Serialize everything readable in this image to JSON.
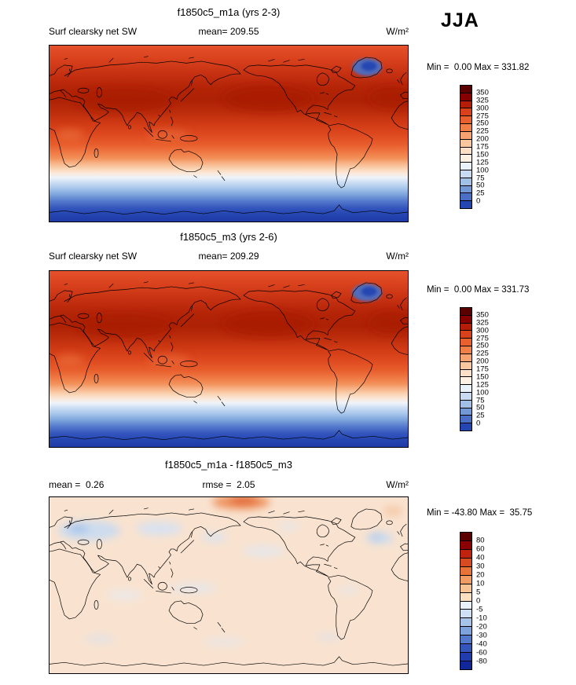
{
  "season": "JJA",
  "panels": [
    {
      "title": "f1850c5_m1a (yrs 2-3)",
      "left_label": "Surf clearsky net SW",
      "center_label": "mean= 209.55",
      "units": "W/m²",
      "minmax": "Min =  0.00 Max = 331.82",
      "colorbar": {
        "labels": [
          "350",
          "325",
          "300",
          "275",
          "250",
          "225",
          "200",
          "175",
          "150",
          "125",
          "100",
          "75",
          "50",
          "25",
          "0"
        ],
        "colors": [
          "#5a0000",
          "#870000",
          "#b51d09",
          "#d8411c",
          "#e8602e",
          "#f08048",
          "#f6a371",
          "#fac79e",
          "#fcdfc6",
          "#fdf1e4",
          "#e9f1fa",
          "#c9dbf2",
          "#a0c0e6",
          "#7299d6",
          "#4a6fc4",
          "#2546b2"
        ]
      }
    },
    {
      "title": "f1850c5_m3 (yrs 2-6)",
      "left_label": "Surf clearsky net SW",
      "center_label": "mean= 209.29",
      "units": "W/m²",
      "minmax": "Min =  0.00 Max = 331.73",
      "colorbar": {
        "labels": [
          "350",
          "325",
          "300",
          "275",
          "250",
          "225",
          "200",
          "175",
          "150",
          "125",
          "100",
          "75",
          "50",
          "25",
          "0"
        ],
        "colors": [
          "#5a0000",
          "#870000",
          "#b51d09",
          "#d8411c",
          "#e8602e",
          "#f08048",
          "#f6a371",
          "#fac79e",
          "#fcdfc6",
          "#fdf1e4",
          "#e9f1fa",
          "#c9dbf2",
          "#a0c0e6",
          "#7299d6",
          "#4a6fc4",
          "#2546b2"
        ]
      }
    },
    {
      "title": "f1850c5_m1a - f1850c5_m3",
      "left_label": "mean =  0.26",
      "center_label": "rmse =  2.05",
      "units": "W/m²",
      "minmax": "Min = -43.80 Max =  35.75",
      "colorbar": {
        "labels": [
          "80",
          "60",
          "40",
          "30",
          "20",
          "10",
          "5",
          "0",
          "-5",
          "-10",
          "-20",
          "-30",
          "-40",
          "-60",
          "-80"
        ],
        "colors": [
          "#5a0000",
          "#8b0000",
          "#bf2310",
          "#d84a22",
          "#e87338",
          "#f29b62",
          "#f8c392",
          "#fce0c2",
          "#e9f1fb",
          "#cfdff4",
          "#a6c4ea",
          "#7da2dc",
          "#5379cc",
          "#3355bc",
          "#1f3dac",
          "#10289a"
        ]
      }
    }
  ],
  "chart_data": [
    {
      "type": "heatmap",
      "subtype": "global-filled-contour-map",
      "title": "f1850c5_m1a (yrs 2-3)",
      "variable": "Surf clearsky net SW",
      "season": "JJA",
      "units": "W/m2",
      "mean": 209.55,
      "min": 0.0,
      "max": 331.82,
      "contour_levels": [
        0,
        25,
        50,
        75,
        100,
        125,
        150,
        175,
        200,
        225,
        250,
        275,
        300,
        325,
        350
      ],
      "palette": "blue-white-red",
      "legend_position": "right",
      "projection": "cylindrical equidistant, 0-360E, 90N-90S",
      "zonal_mean_estimate": {
        "lat": [
          90,
          70,
          50,
          35,
          20,
          0,
          -20,
          -35,
          -50,
          -65,
          -80,
          -90
        ],
        "value": [
          265,
          290,
          310,
          320,
          300,
          285,
          240,
          170,
          100,
          40,
          5,
          0
        ]
      },
      "notable_features": "dark-red maximum (>325) over subtropical N Pacific, N Atlantic and S Asia; low values (blue, <50) over Greenland and Antarctica / southern polar night"
    },
    {
      "type": "heatmap",
      "subtype": "global-filled-contour-map",
      "title": "f1850c5_m3 (yrs 2-6)",
      "variable": "Surf clearsky net SW",
      "season": "JJA",
      "units": "W/m2",
      "mean": 209.29,
      "min": 0.0,
      "max": 331.73,
      "contour_levels": [
        0,
        25,
        50,
        75,
        100,
        125,
        150,
        175,
        200,
        225,
        250,
        275,
        300,
        325,
        350
      ],
      "palette": "blue-white-red",
      "legend_position": "right",
      "projection": "cylindrical equidistant, 0-360E, 90N-90S",
      "zonal_mean_estimate": {
        "lat": [
          90,
          70,
          50,
          35,
          20,
          0,
          -20,
          -35,
          -50,
          -65,
          -80,
          -90
        ],
        "value": [
          265,
          290,
          310,
          320,
          300,
          285,
          240,
          170,
          100,
          40,
          5,
          0
        ]
      },
      "notable_features": "virtually identical pattern to f1850c5_m1a"
    },
    {
      "type": "heatmap",
      "subtype": "global-filled-contour-difference-map",
      "title": "f1850c5_m1a - f1850c5_m3",
      "season": "JJA",
      "units": "W/m2",
      "mean": 0.26,
      "rmse": 2.05,
      "min": -43.8,
      "max": 35.75,
      "contour_levels": [
        -80,
        -60,
        -40,
        -30,
        -20,
        -10,
        -5,
        0,
        5,
        10,
        20,
        30,
        40,
        60,
        80
      ],
      "palette": "blue-white-red",
      "legend_position": "right",
      "projection": "cylindrical equidistant, 0-360E, 90N-90S",
      "notable_features": "differences mostly within 0 to +5 (pale peach); scattered weak negative (pale blue) patches over northern Eurasia, N Atlantic and tropical oceans; small positive (orange) patch over central Arctic"
    }
  ]
}
